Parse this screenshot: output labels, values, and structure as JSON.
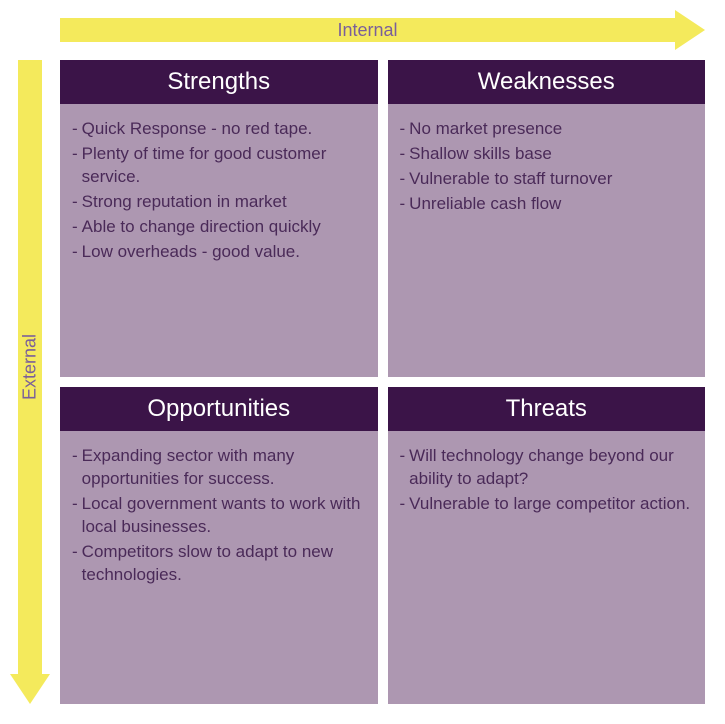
{
  "colors": {
    "arrow_fill": "#f4ea5c",
    "arrow_text": "#7a5f9a",
    "header_bg": "#3b1448",
    "header_text": "#ffffff",
    "body_bg": "#ad97b1",
    "body_text": "#4a2a58"
  },
  "axes": {
    "top": "Internal",
    "left": "External"
  },
  "quadrants": [
    {
      "title": "Strengths",
      "items": [
        "Quick Response - no red tape.",
        "Plenty of time for good customer service.",
        "Strong reputation in market",
        "Able to change direction quickly",
        "Low overheads - good value."
      ]
    },
    {
      "title": "Weaknesses",
      "items": [
        "No market presence",
        "Shallow skills base",
        "Vulnerable to staff turnover",
        "Unreliable cash flow"
      ]
    },
    {
      "title": "Opportunities",
      "items": [
        "Expanding sector with many opportunities for success.",
        "Local government wants to work with local businesses.",
        "Competitors slow to adapt to new technologies."
      ]
    },
    {
      "title": "Threats",
      "items": [
        "Will technology change beyond our ability to adapt?",
        "Vulnerable to large competitor action."
      ]
    }
  ]
}
